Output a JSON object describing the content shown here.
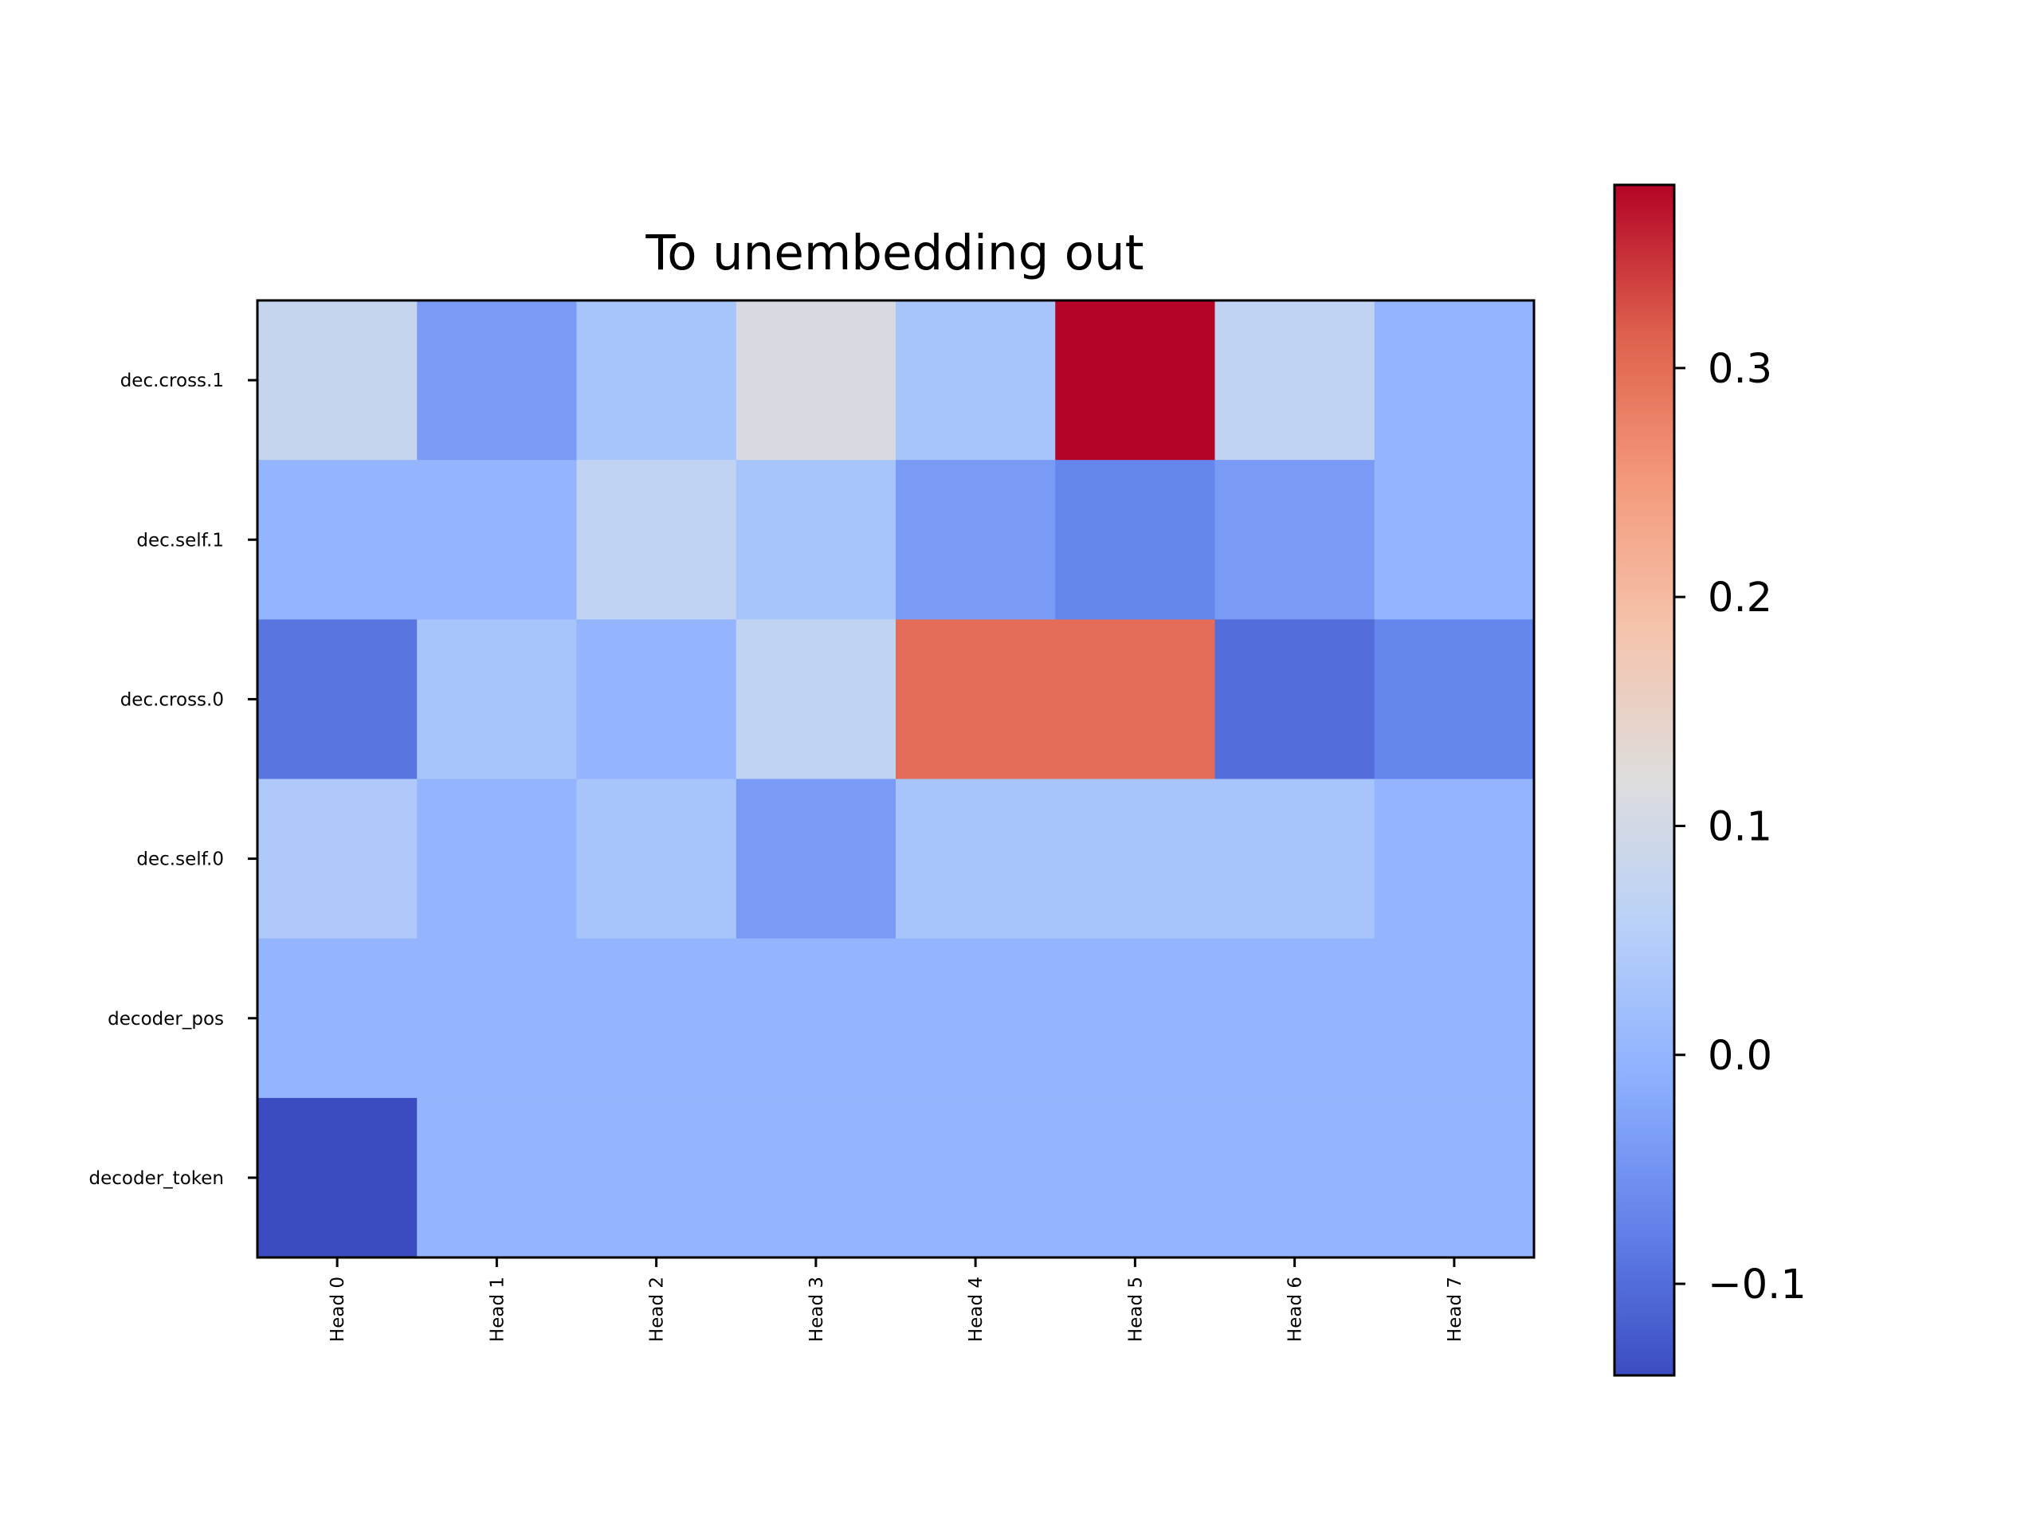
{
  "chart_data": {
    "type": "heatmap",
    "title": "To unembedding out",
    "xlabel": "",
    "ylabel": "",
    "x_categories": [
      "Head 0",
      "Head 1",
      "Head 2",
      "Head 3",
      "Head 4",
      "Head 5",
      "Head 6",
      "Head 7"
    ],
    "y_categories": [
      "dec.cross.1",
      "dec.self.1",
      "dec.cross.0",
      "dec.self.0",
      "decoder_pos",
      "decoder_token"
    ],
    "values": [
      [
        0.08,
        -0.04,
        0.03,
        0.11,
        0.03,
        0.38,
        0.07,
        0.0
      ],
      [
        0.0,
        0.0,
        0.07,
        0.03,
        -0.04,
        -0.07,
        -0.04,
        0.0
      ],
      [
        -0.09,
        0.03,
        0.0,
        0.07,
        0.3,
        0.3,
        -0.1,
        -0.07
      ],
      [
        0.04,
        0.0,
        0.03,
        -0.04,
        0.03,
        0.03,
        0.03,
        0.0
      ],
      [
        0.0,
        0.0,
        0.0,
        0.0,
        0.0,
        0.0,
        0.0,
        0.0
      ],
      [
        -0.14,
        0.0,
        0.0,
        0.0,
        0.0,
        0.0,
        0.0,
        0.0
      ]
    ],
    "colormap": "coolwarm",
    "colorbar": {
      "vmin": -0.14,
      "vmax": 0.38,
      "ticks": [
        -0.1,
        0.0,
        0.1,
        0.2,
        0.3
      ],
      "tick_labels": [
        "−0.1",
        "0.0",
        "0.1",
        "0.2",
        "0.3"
      ]
    },
    "grid": false
  }
}
